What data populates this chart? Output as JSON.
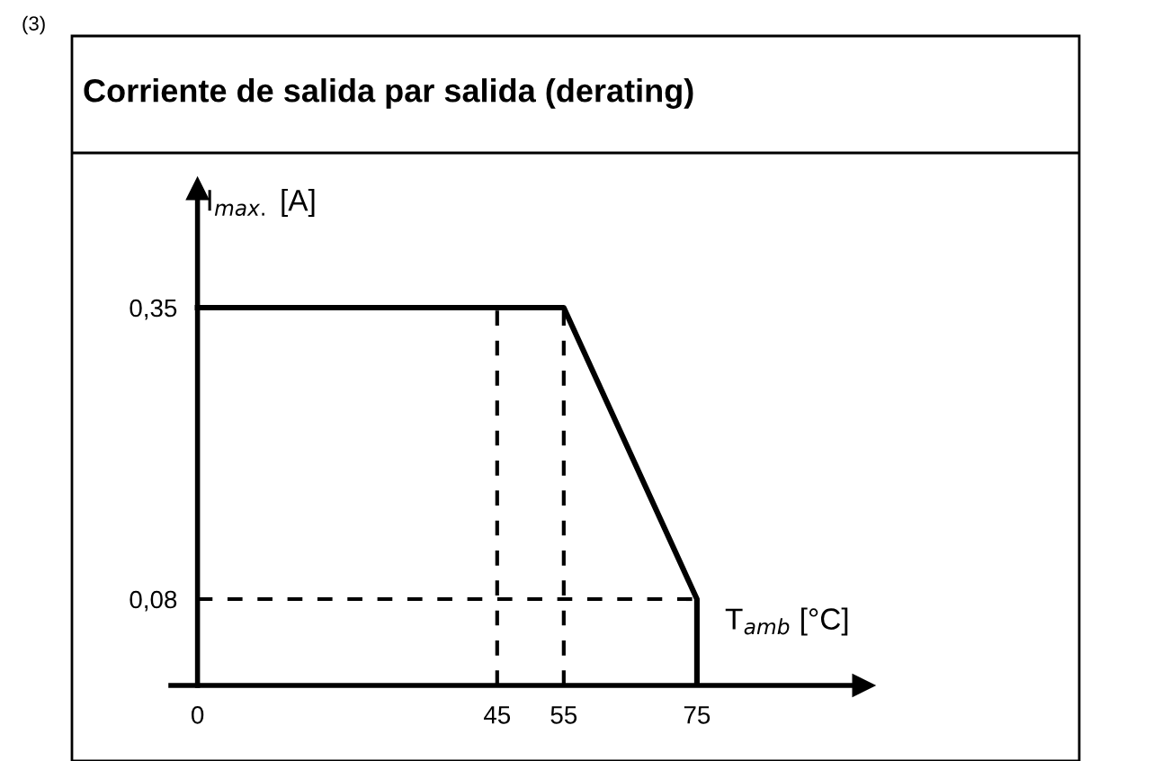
{
  "chart_data": {
    "type": "line",
    "title": "Corriente de salida par salida (derating)",
    "xlabel": "T$_{amb}$ [°C]",
    "ylabel": "I$_{max.}$ [A]",
    "annotations": [
      "(3)"
    ],
    "series": [
      {
        "color": "#000000",
        "x": [
          0,
          55,
          75,
          75
        ],
        "values": [
          0.35,
          0.35,
          0.08,
          0
        ]
      }
    ],
    "xlim": [
      -4,
      100
    ],
    "ylim": [
      0,
      0.46
    ],
    "xticks": [
      0,
      45,
      55,
      75
    ],
    "yticks": [
      {
        "value": 0.08,
        "label": "0,08"
      },
      {
        "value": 0.35,
        "label": "0,35"
      }
    ],
    "ref_lines": [
      {
        "axis": "x",
        "value": 45,
        "line_style": "dashed",
        "color": "#000000"
      },
      {
        "axis": "x",
        "value": 55,
        "line_style": "dashed",
        "color": "#000000"
      },
      {
        "axis": "y",
        "value": 0.08,
        "line_style": "dashed",
        "color": "#000000"
      }
    ],
    "grid": false,
    "marker": "none",
    "line_style": "solid"
  }
}
